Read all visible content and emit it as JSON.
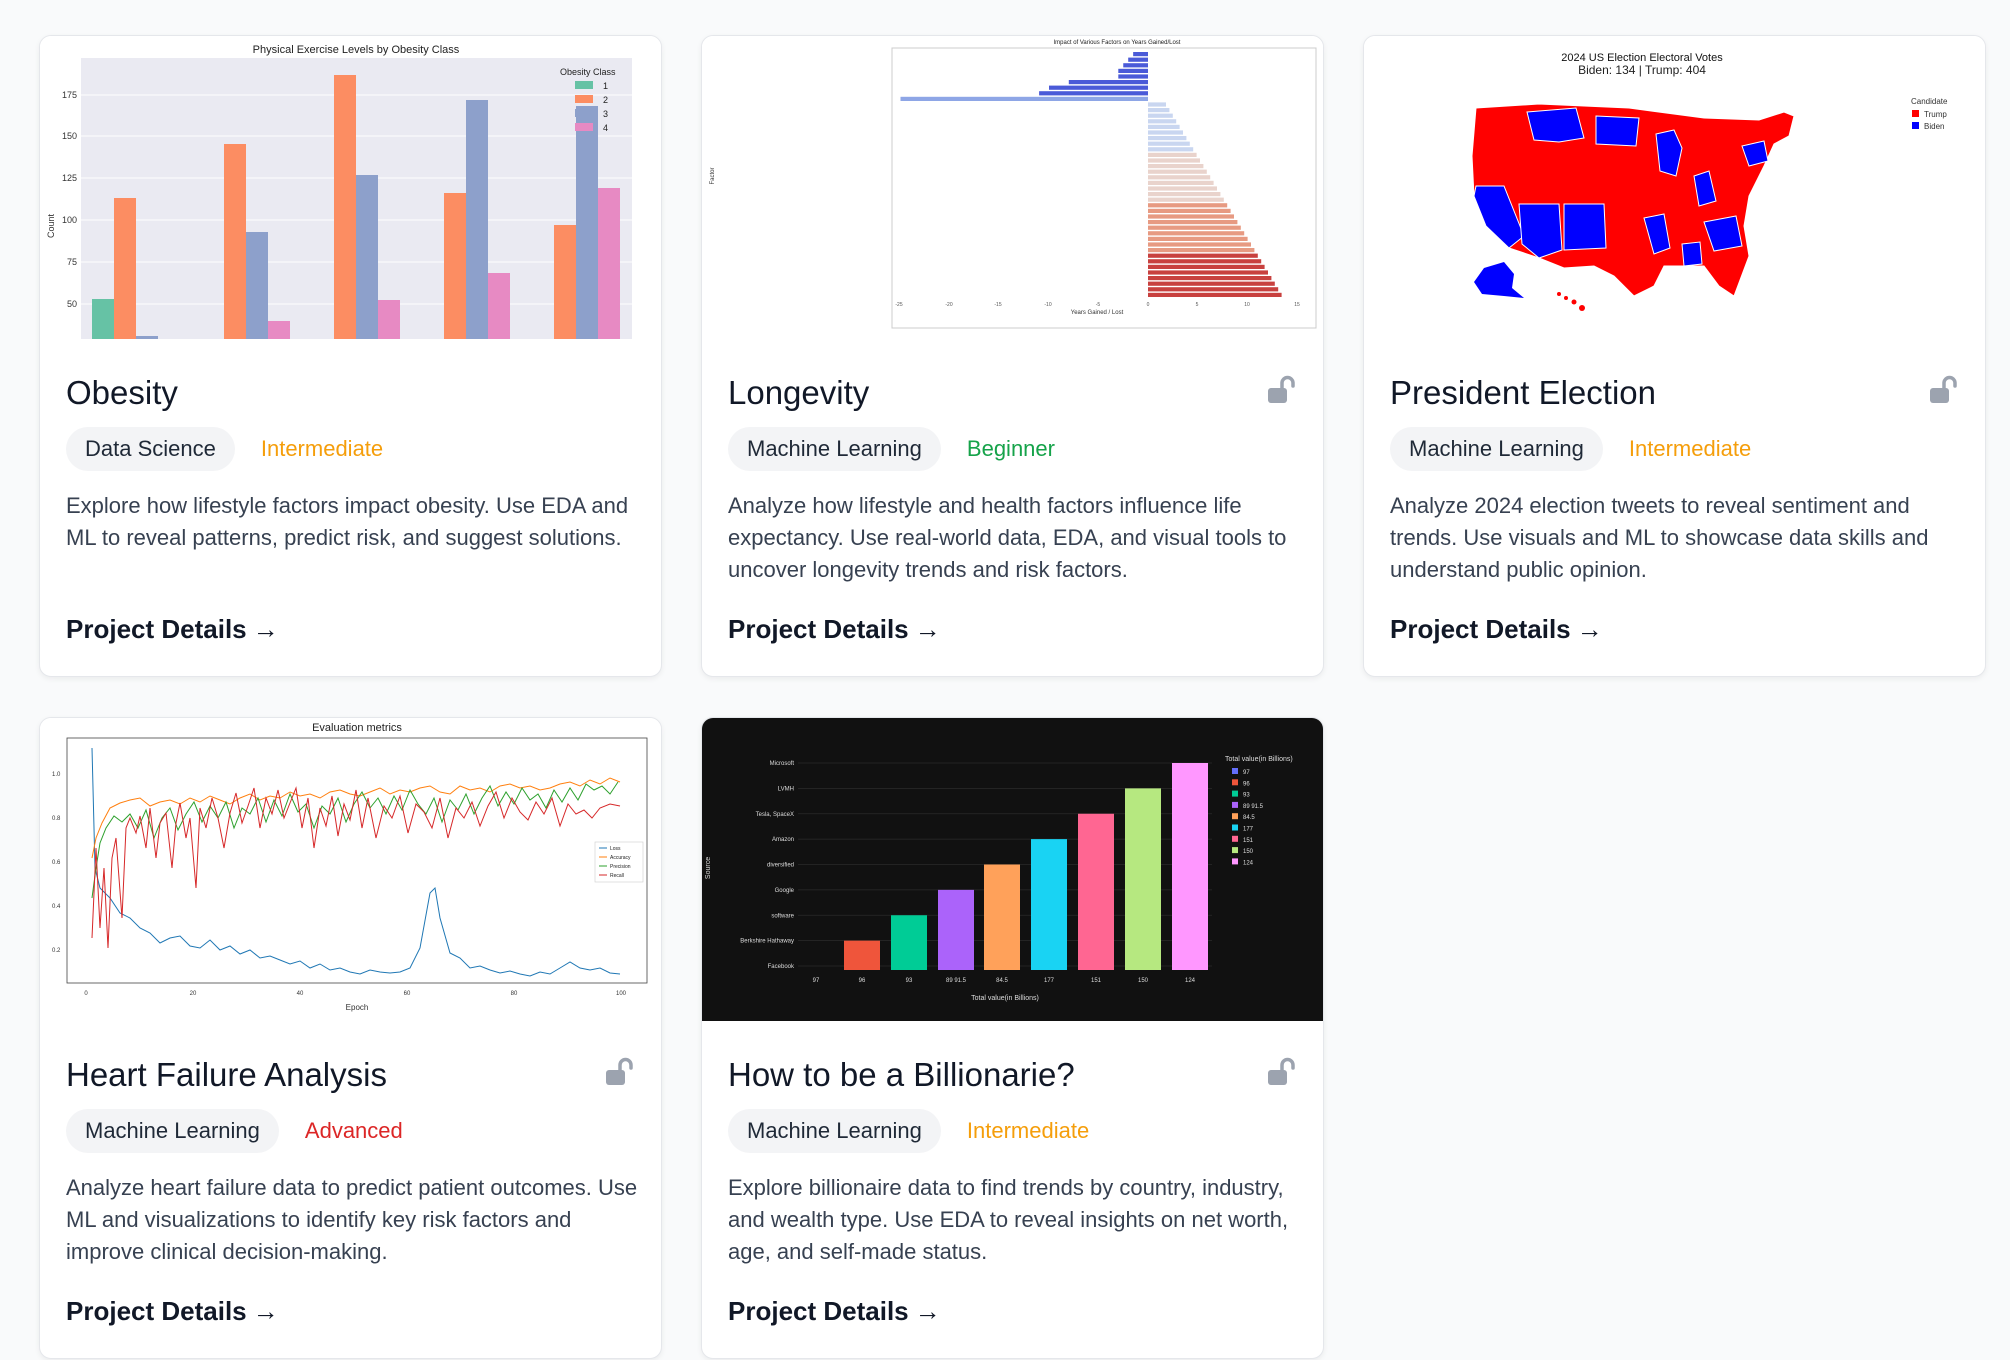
{
  "colors": {
    "intermediate": "#f59e0b",
    "beginner": "#16a34a",
    "advanced": "#dc2626",
    "lock": "#9ca3af"
  },
  "cards": [
    {
      "title": "Obesity",
      "category": "Data Science",
      "level": "Intermediate",
      "level_color": "#f59e0b",
      "description": "Explore how lifestyle factors impact obesity. Use EDA and ML to reveal patterns, predict risk, and suggest solutions.",
      "link_label": "Project Details",
      "link_icon": "arrow-right-icon",
      "locked_icon": false,
      "chart_data": {
        "type": "bar",
        "title": "Physical Exercise Levels by Obesity Class",
        "ylabel": "Count",
        "legend_title": "Obesity Class",
        "legend": [
          "1",
          "2",
          "3",
          "4"
        ],
        "yticks": [
          "50",
          "75",
          "100",
          "125",
          "150",
          "175"
        ]
      }
    },
    {
      "title": "Longevity",
      "category": "Machine Learning",
      "level": "Beginner",
      "level_color": "#16a34a",
      "description": "Analyze how lifestyle and health factors influence life expectancy. Use real-world data, EDA, and visual tools to uncover longevity trends and risk factors.",
      "link_label": "Project Details",
      "link_icon": "arrow-right-icon",
      "locked_icon": true,
      "chart_data": {
        "type": "bar",
        "title": "Impact of Various Factors on Years Gained/Lost",
        "xlabel": "Years Gained / Lost",
        "ylabel": "Factor",
        "xticks": [
          "-25",
          "-20",
          "-15",
          "-10",
          "-5",
          "0",
          "5",
          "10",
          "15"
        ]
      }
    },
    {
      "title": "President Election",
      "category": "Machine Learning",
      "level": "Intermediate",
      "level_color": "#f59e0b",
      "description": "Analyze 2024 election tweets to reveal sentiment and trends. Use visuals and ML to showcase data skills and understand public opinion.",
      "link_label": "Project Details",
      "link_icon": "arrow-right-icon",
      "locked_icon": true,
      "chart_data": {
        "type": "map",
        "title": "2024 US Election Electoral Votes",
        "subtitle": "Biden: 134 | Trump: 404",
        "legend_title": "Candidate",
        "legend": [
          "Trump",
          "Biden"
        ]
      }
    },
    {
      "title": "Heart Failure Analysis",
      "category": "Machine Learning",
      "level": "Advanced",
      "level_color": "#dc2626",
      "description": "Analyze heart failure data to predict patient outcomes. Use ML and visualizations to identify key risk factors and improve clinical decision-making.",
      "link_label": "Project Details",
      "link_icon": "arrow-right-icon",
      "locked_icon": true,
      "chart_data": {
        "type": "line",
        "title": "Evaluation metrics",
        "xlabel": "Epoch",
        "legend": [
          "Loss",
          "Accuracy",
          "Precision",
          "Recall"
        ],
        "xticks": [
          "0",
          "20",
          "40",
          "60",
          "80",
          "100"
        ],
        "yticks": [
          "0.2",
          "0.4",
          "0.6",
          "0.8",
          "1.0"
        ]
      }
    },
    {
      "title": "How to be a Billionarie?",
      "category": "Machine Learning",
      "level": "Intermediate",
      "level_color": "#f59e0b",
      "description": "Explore billionaire data to find trends by country, industry, and wealth type. Use EDA to reveal insights on net worth, age, and self-made status.",
      "link_label": "Project Details",
      "link_icon": "arrow-right-icon",
      "locked_icon": true,
      "chart_data": {
        "type": "bar",
        "xlabel": "Total value(in Billions)",
        "ylabel": "Source",
        "legend_title": "Total value(in Billions)",
        "categories": [
          "Facebook",
          "Berkshire Hathaway",
          "software",
          "Google",
          "diversified",
          "Amazon",
          "Tesla, SpaceX",
          "LVMH",
          "Microsoft"
        ],
        "xticks": [
          "97",
          "96",
          "93",
          "89 91.5",
          "84.5",
          "177",
          "151",
          "150",
          "124"
        ],
        "legend": [
          "97",
          "96",
          "93",
          "89 91.5",
          "84.5",
          "177",
          "151",
          "150",
          "124"
        ]
      }
    }
  ]
}
